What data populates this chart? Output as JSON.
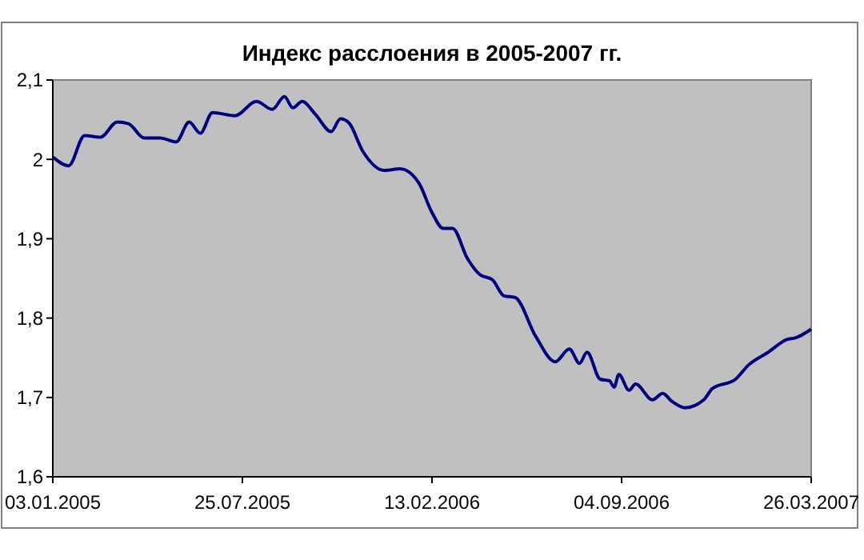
{
  "chart_data": {
    "type": "line",
    "title": "Индекс расслоения в 2005-2007 гг.",
    "x": [
      "2005-01-03",
      "2005-01-20",
      "2005-02-06",
      "2005-02-23",
      "2005-03-13",
      "2005-03-25",
      "2005-04-11",
      "2005-04-28",
      "2005-05-15",
      "2005-05-29",
      "2005-06-10",
      "2005-06-23",
      "2005-07-17",
      "2005-08-09",
      "2005-08-26",
      "2005-09-08",
      "2005-09-17",
      "2005-09-27",
      "2005-10-11",
      "2005-10-28",
      "2005-11-07",
      "2005-11-16",
      "2005-12-01",
      "2005-12-24",
      "2006-01-10",
      "2006-01-30",
      "2006-02-13",
      "2006-02-25",
      "2006-03-07",
      "2006-03-23",
      "2006-04-05",
      "2006-04-19",
      "2006-05-01",
      "2006-05-13",
      "2006-06-04",
      "2006-06-25",
      "2006-07-10",
      "2006-07-21",
      "2006-07-29",
      "2006-08-12",
      "2006-08-22",
      "2006-08-27",
      "2006-09-01",
      "2006-09-12",
      "2006-09-19",
      "2006-10-07",
      "2006-10-18",
      "2006-10-28",
      "2006-11-11",
      "2006-12-01",
      "2006-12-10",
      "2007-01-04",
      "2007-01-18",
      "2007-02-08",
      "2007-02-28",
      "2007-03-09",
      "2007-03-26"
    ],
    "series": [
      {
        "color": "#000080",
        "values": [
          2.003,
          1.992,
          2.03,
          2.028,
          2.047,
          2.045,
          2.027,
          2.027,
          2.022,
          2.047,
          2.033,
          2.059,
          2.055,
          2.073,
          2.063,
          2.079,
          2.065,
          2.073,
          2.057,
          2.035,
          2.051,
          2.046,
          2.01,
          1.986,
          1.988,
          1.97,
          1.933,
          1.913,
          1.913,
          1.875,
          1.855,
          1.848,
          1.828,
          1.826,
          1.777,
          1.745,
          1.761,
          1.743,
          1.757,
          1.723,
          1.721,
          1.713,
          1.729,
          1.709,
          1.717,
          1.697,
          1.705,
          1.695,
          1.687,
          1.697,
          1.711,
          1.723,
          1.741,
          1.757,
          1.773,
          1.775,
          1.786
        ]
      }
    ],
    "xlim": [
      "2005-01-03",
      "2007-03-26"
    ],
    "xticks": [
      {
        "value": "2005-01-03",
        "label": "03.01.2005"
      },
      {
        "value": "2005-07-25",
        "label": "25.07.2005"
      },
      {
        "value": "2006-02-13",
        "label": "13.02.2006"
      },
      {
        "value": "2006-09-04",
        "label": "04.09.2006"
      },
      {
        "value": "2007-03-26",
        "label": "26.03.2007"
      }
    ],
    "ylim": [
      1.6,
      2.1
    ],
    "yticks": [
      {
        "value": 1.6,
        "label": "1,6"
      },
      {
        "value": 1.7,
        "label": "1,7"
      },
      {
        "value": 1.8,
        "label": "1,8"
      },
      {
        "value": 1.9,
        "label": "1,9"
      },
      {
        "value": 2,
        "label": "2"
      },
      {
        "value": 2.1,
        "label": "2,1"
      }
    ],
    "grid": false,
    "marker": "none",
    "line_style": "solid"
  }
}
